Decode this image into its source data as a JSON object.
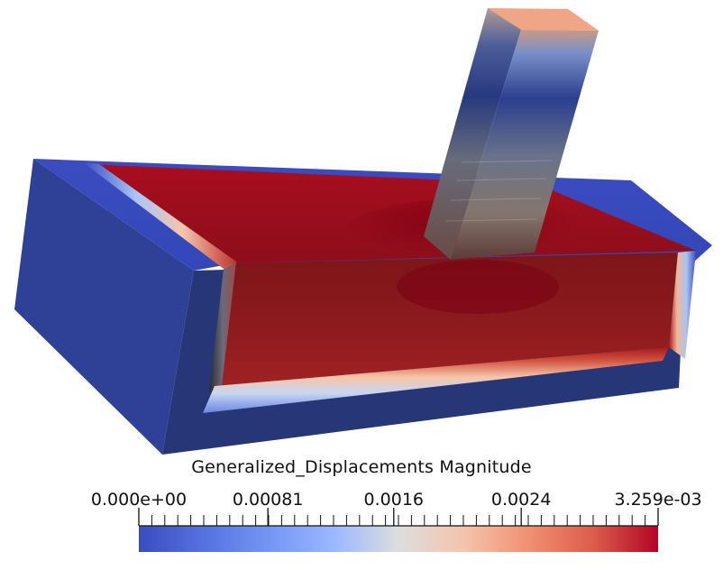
{
  "legend": {
    "title": "Generalized_Displacements Magnitude",
    "range": [
      0,
      0.003259
    ],
    "labels": [
      "0.000e+00",
      "0.00081",
      "0.0016",
      "0.0024",
      "3.259e-03"
    ],
    "label_values": [
      0,
      0.00081,
      0.0016,
      0.0024,
      0.003259
    ],
    "minor_tick_count": 41,
    "colormap": "cool-to-warm",
    "colors": {
      "low": "#3b4cc0",
      "mid": "#dddddd",
      "high": "#b40426"
    }
  }
}
